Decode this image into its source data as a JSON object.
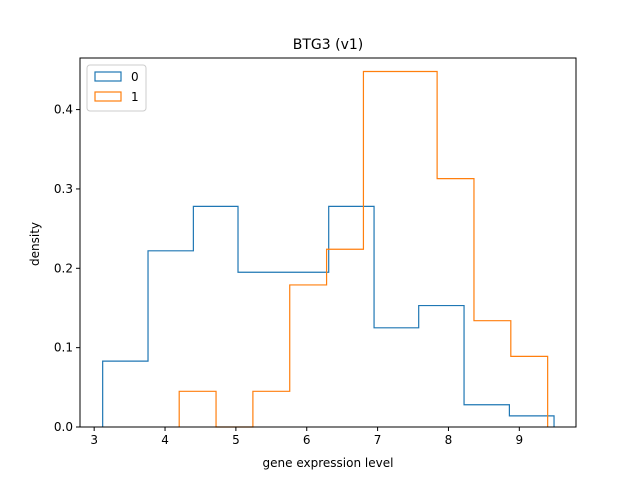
{
  "chart_data": {
    "type": "histogram-step",
    "title": "BTG3  (v1)",
    "xlabel": "gene expression level",
    "ylabel": "density",
    "xlim": [
      2.8,
      9.8
    ],
    "ylim": [
      0,
      0.465
    ],
    "xticks": [
      3,
      4,
      5,
      6,
      7,
      8,
      9
    ],
    "yticks": [
      0.0,
      0.1,
      0.2,
      0.3,
      0.4
    ],
    "ytick_labels": [
      "0.0",
      "0.1",
      "0.2",
      "0.3",
      "0.4"
    ],
    "grid": false,
    "legend_position": "top-left",
    "series": [
      {
        "name": "0",
        "color": "#1f77b4",
        "edges": [
          3.12,
          3.76,
          4.4,
          5.03,
          5.67,
          6.31,
          6.95,
          7.58,
          8.22,
          8.86,
          9.49
        ],
        "values": [
          0.083,
          0.222,
          0.278,
          0.195,
          0.195,
          0.278,
          0.125,
          0.153,
          0.028,
          0.014
        ]
      },
      {
        "name": "1",
        "color": "#ff7f0e",
        "edges": [
          4.2,
          4.72,
          5.24,
          5.76,
          6.28,
          6.8,
          7.32,
          7.84,
          8.36,
          8.88,
          9.4
        ],
        "values": [
          0.045,
          0.0,
          0.045,
          0.179,
          0.224,
          0.448,
          0.448,
          0.313,
          0.134,
          0.089
        ]
      }
    ]
  }
}
